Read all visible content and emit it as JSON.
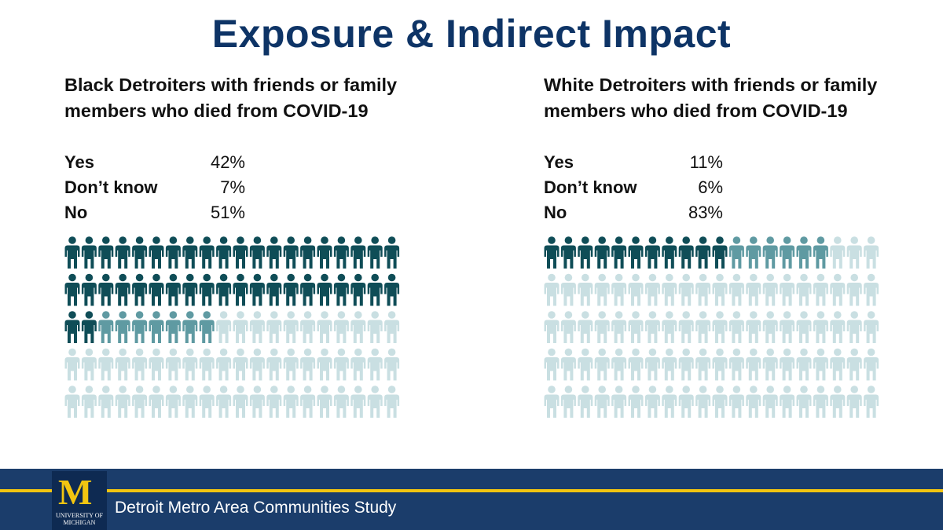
{
  "title": "Exposure & Indirect Impact",
  "colors": {
    "yes": "#0f4d57",
    "dont_know": "#5f9aa2",
    "no": "#c9dfe2",
    "title": "#0e3466",
    "footer": "#1b3d6b",
    "accent": "#f2c511"
  },
  "chart_data": [
    {
      "type": "pictograph",
      "title": "Black Detroiters with friends or family members who died from COVID-19",
      "categories": [
        "Yes",
        "Don’t know",
        "No"
      ],
      "labels": [
        "42%",
        "7%",
        "51%"
      ],
      "values": [
        42,
        7,
        51
      ],
      "icons_total": 100,
      "icons_per_row": 20
    },
    {
      "type": "pictograph",
      "title": "White Detroiters with friends or family members who died from COVID-19",
      "categories": [
        "Yes",
        "Don’t know",
        "No"
      ],
      "labels": [
        "11%",
        "6%",
        "83%"
      ],
      "values": [
        11,
        6,
        83
      ],
      "icons_total": 100,
      "icons_per_row": 20
    }
  ],
  "footer": {
    "logo_letter": "M",
    "logo_line1": "UNIVERSITY OF",
    "logo_line2": "MICHIGAN",
    "study_name": "Detroit Metro Area Communities Study"
  },
  "icons": {
    "person": "person-icon"
  }
}
